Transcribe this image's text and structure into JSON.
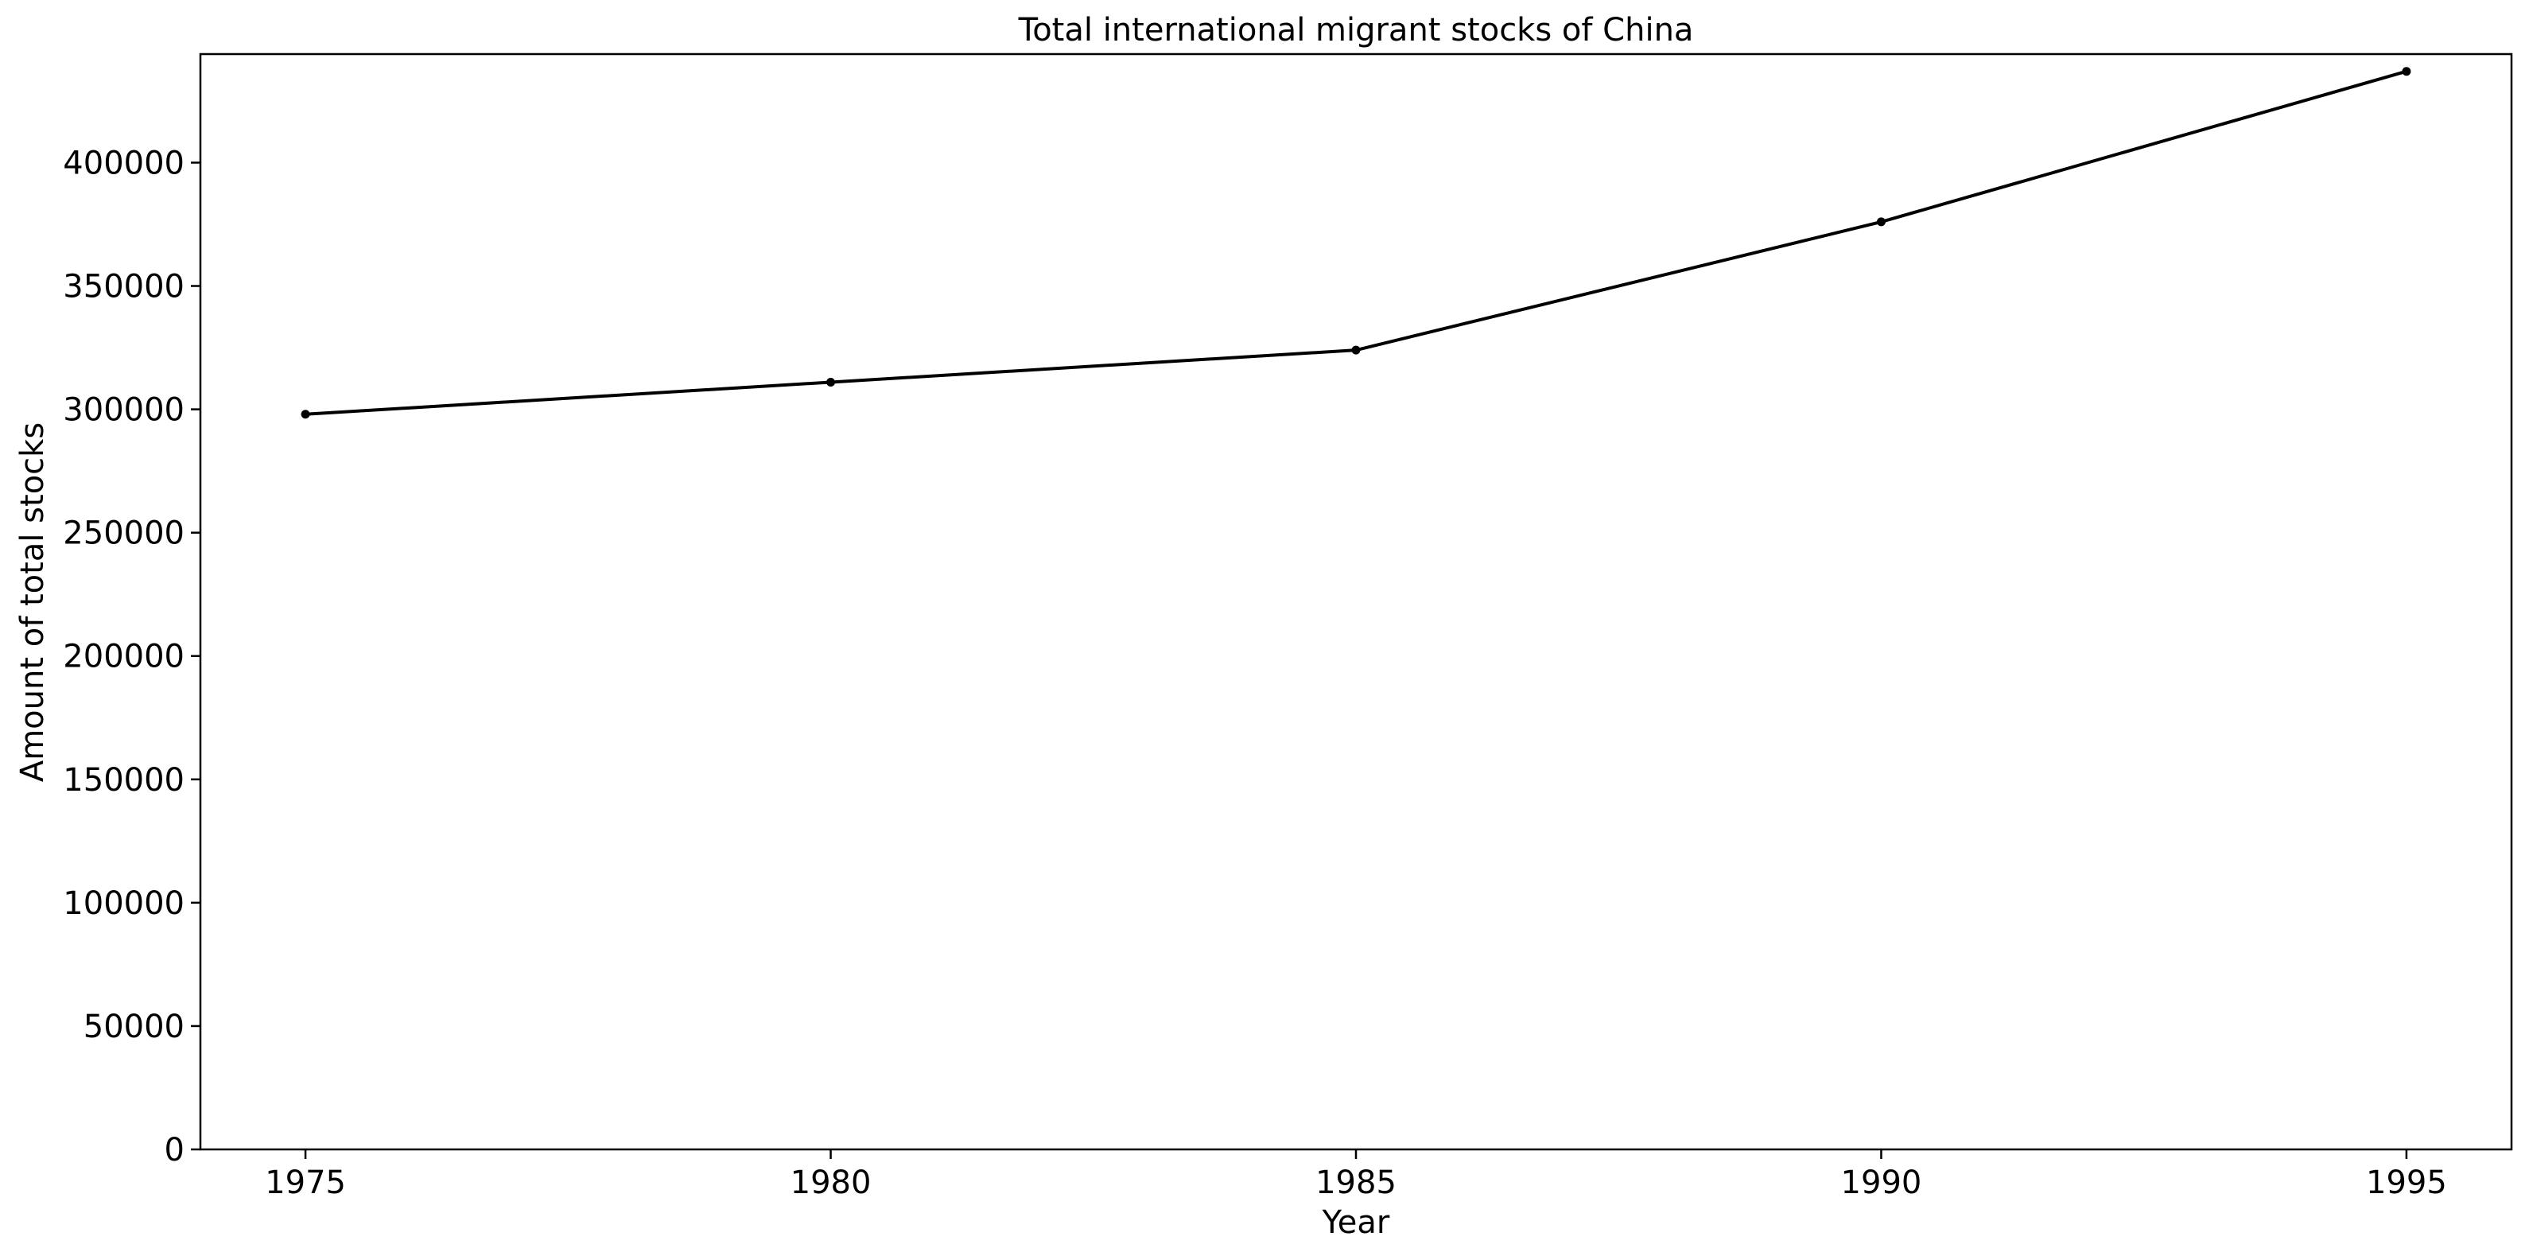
{
  "chart_data": {
    "type": "line",
    "title": "Total international migrant stocks of China",
    "xlabel": "Year",
    "ylabel": "Amount of total stocks",
    "x": [
      1975,
      1980,
      1985,
      1990,
      1995
    ],
    "series": [
      {
        "values": [
          298000,
          311000,
          324000,
          376000,
          437000
        ]
      }
    ],
    "xlim": [
      1974,
      1996
    ],
    "ylim": [
      0,
      444000
    ],
    "xticks": [
      "1975",
      "1980",
      "1985",
      "1990",
      "1995"
    ],
    "yticks": [
      "0",
      "50000",
      "100000",
      "150000",
      "200000",
      "250000",
      "300000",
      "350000",
      "400000"
    ],
    "grid": false,
    "legend": "none",
    "line_color": "#000000",
    "marker": "point"
  }
}
